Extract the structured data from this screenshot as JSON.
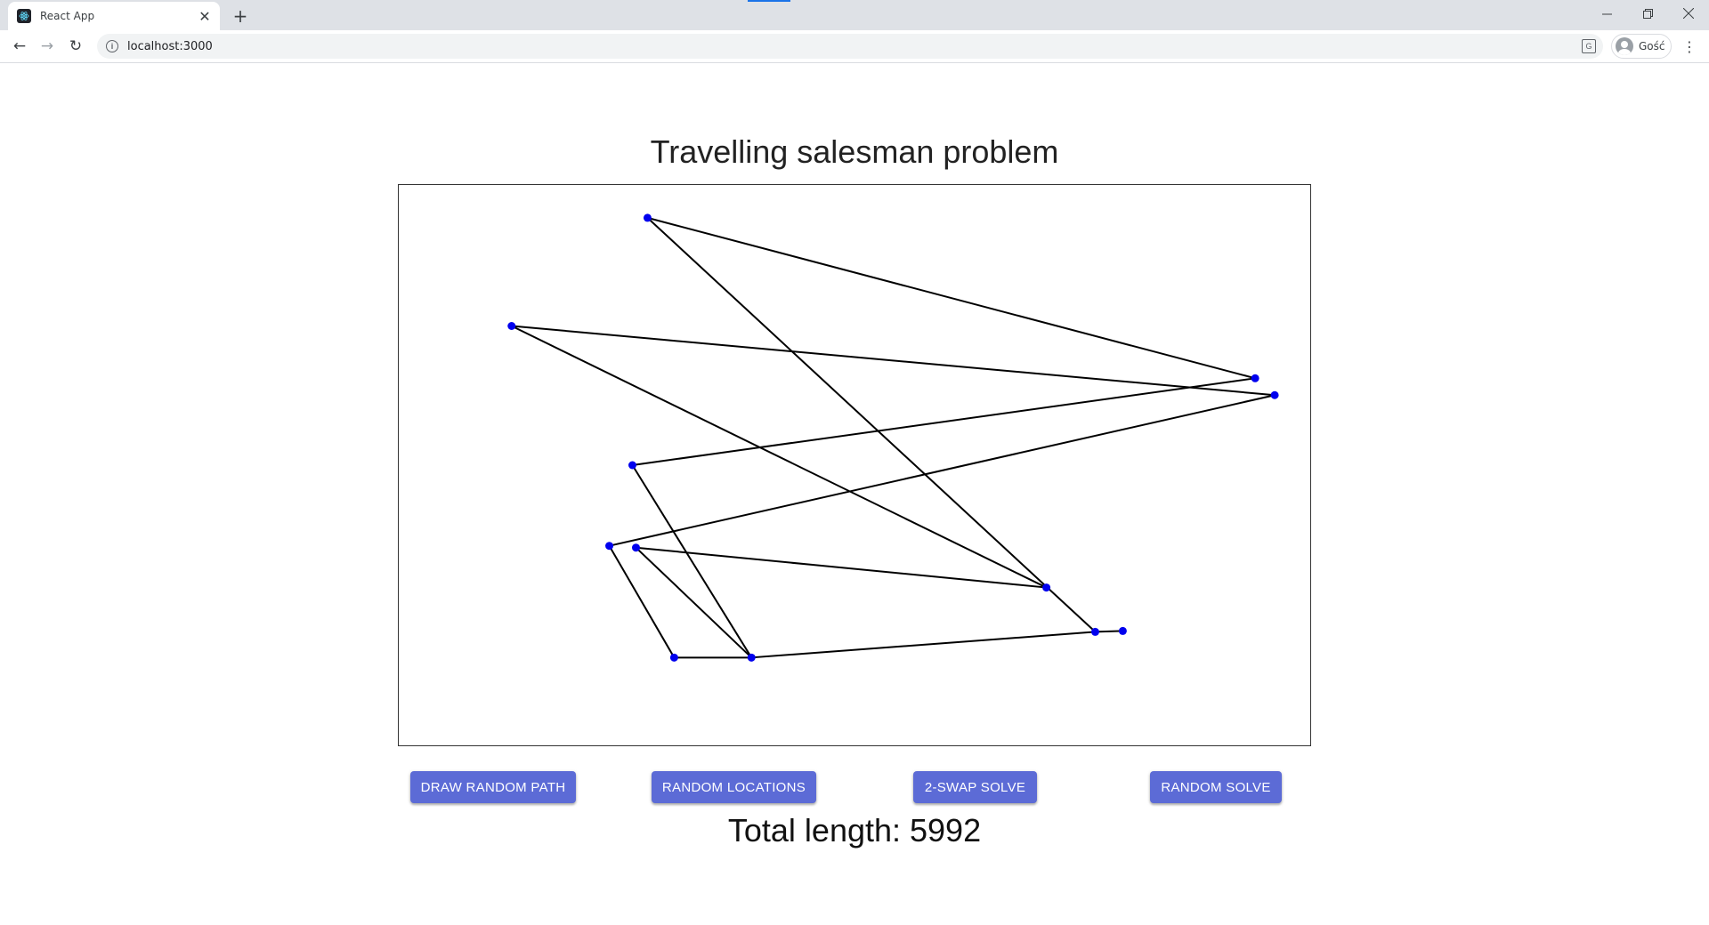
{
  "browser": {
    "tab_title": "React App",
    "url": "localhost:3000",
    "profile_name": "Gość",
    "icons": {
      "favicon": "react-logo-icon",
      "tab_close": "close-icon",
      "new_tab": "plus-icon",
      "back": "back-arrow-icon",
      "forward": "forward-arrow-icon",
      "reload": "reload-icon",
      "site_info": "info-icon",
      "translate": "translate-icon",
      "menu": "kebab-menu-icon",
      "minimize": "minimize-icon",
      "restore": "restore-icon",
      "close_window": "close-icon"
    }
  },
  "page": {
    "title": "Travelling salesman problem",
    "buttons": {
      "draw_random_path": "DRAW RANDOM PATH",
      "random_locations": "RANDOM LOCATIONS",
      "two_swap_solve": "2-SWAP SOLVE",
      "random_solve": "RANDOM SOLVE"
    },
    "total_length_label": "Total length: 5992",
    "colors": {
      "button_bg": "#5c6bd6",
      "point": "#0000ee",
      "path": "#000000"
    }
  },
  "chart_data": {
    "type": "scatter",
    "title": "",
    "xlabel": "",
    "ylabel": "",
    "xlim": [
      0,
      1026
    ],
    "ylim": [
      0,
      632
    ],
    "y_axis_direction": "down",
    "axes_visible": false,
    "grid": false,
    "points": [
      {
        "x": 280,
        "y": 37
      },
      {
        "x": 964,
        "y": 218
      },
      {
        "x": 127,
        "y": 159
      },
      {
        "x": 986,
        "y": 237
      },
      {
        "x": 237,
        "y": 407
      },
      {
        "x": 310,
        "y": 533
      },
      {
        "x": 263,
        "y": 316
      },
      {
        "x": 397,
        "y": 533
      },
      {
        "x": 267,
        "y": 409
      },
      {
        "x": 729,
        "y": 454
      },
      {
        "x": 784,
        "y": 504
      },
      {
        "x": 815,
        "y": 503
      }
    ],
    "path_order": [
      0,
      1,
      6,
      7,
      10,
      11
    ],
    "segments": [
      [
        0,
        1
      ],
      [
        1,
        6
      ],
      [
        6,
        7
      ],
      [
        7,
        10
      ],
      [
        10,
        11
      ],
      [
        0,
        10
      ],
      [
        2,
        3
      ],
      [
        2,
        9
      ],
      [
        3,
        4
      ],
      [
        4,
        5
      ],
      [
        5,
        7
      ],
      [
        7,
        8
      ],
      [
        8,
        9
      ]
    ]
  }
}
